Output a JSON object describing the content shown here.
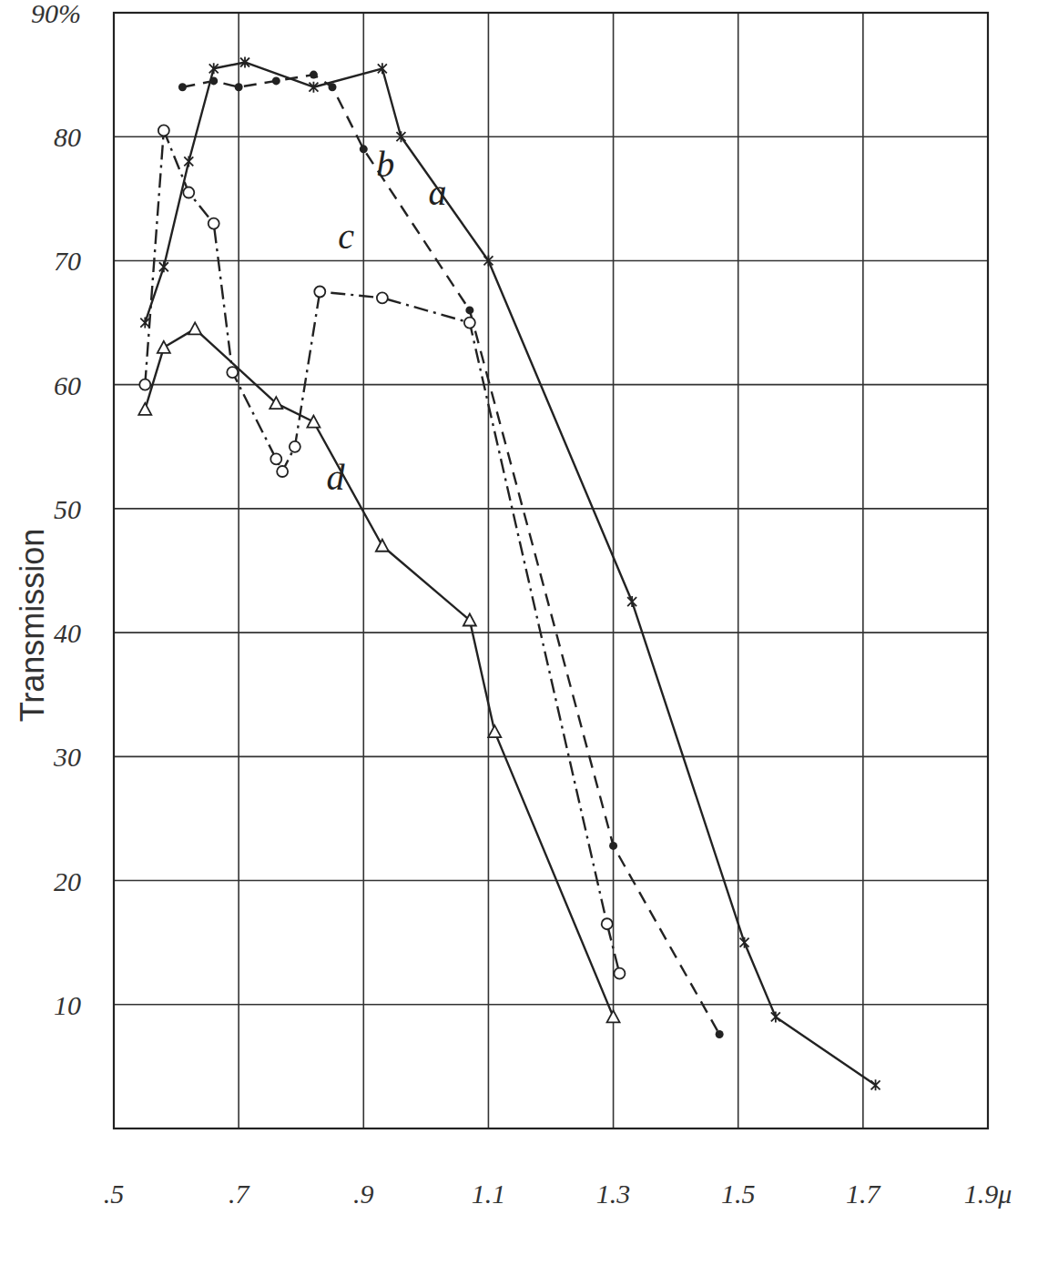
{
  "chart_data": {
    "type": "line",
    "y_label": "Transmission",
    "xlim": [
      0.5,
      1.9
    ],
    "ylim": [
      0,
      90
    ],
    "xticks": [
      {
        "value": 0.5,
        "label": ".5"
      },
      {
        "value": 0.7,
        "label": ".7"
      },
      {
        "value": 0.9,
        "label": ".9"
      },
      1.1,
      1.3,
      1.5,
      1.7,
      {
        "value": 1.9,
        "label": "1.9μ"
      }
    ],
    "yticks": [
      10,
      20,
      30,
      40,
      50,
      60,
      70,
      80,
      {
        "value": 90,
        "label": "90%"
      }
    ],
    "grid": true,
    "series": [
      {
        "name": "a",
        "color": "#222222",
        "marker": "star",
        "line_style": "solid",
        "x": [
          0.55,
          0.58,
          0.62,
          0.66,
          0.71,
          0.82,
          0.93,
          0.96,
          1.1,
          1.33,
          1.51,
          1.56,
          1.72
        ],
        "values": [
          65,
          69.5,
          78,
          85.5,
          86,
          84,
          85.5,
          80,
          70,
          42.5,
          15,
          9,
          3.5
        ]
      },
      {
        "name": "b",
        "color": "#222222",
        "marker": "dot",
        "line_style": "dashed",
        "x": [
          0.61,
          0.66,
          0.7,
          0.76,
          0.82,
          0.85,
          0.9,
          1.07,
          1.3,
          1.47
        ],
        "values": [
          84,
          84.5,
          84,
          84.5,
          85,
          84,
          79,
          66,
          22.8,
          7.6
        ]
      },
      {
        "name": "c",
        "color": "#222222",
        "marker": "circle",
        "line_style": "dashdot",
        "x": [
          0.55,
          0.58,
          0.62,
          0.66,
          0.69,
          0.76,
          0.77,
          0.79,
          0.83,
          0.93,
          1.07,
          1.29,
          1.31
        ],
        "values": [
          60,
          80.5,
          75.5,
          73,
          61,
          54,
          53,
          55,
          67.5,
          67,
          65,
          16.5,
          12.5
        ]
      },
      {
        "name": "d",
        "color": "#222222",
        "marker": "triangle",
        "line_style": "solid",
        "x": [
          0.55,
          0.58,
          0.63,
          0.76,
          0.82,
          0.93,
          1.07,
          1.11,
          1.3
        ],
        "values": [
          58,
          63,
          64.5,
          58.5,
          57,
          47,
          41,
          32,
          9
        ]
      }
    ]
  }
}
